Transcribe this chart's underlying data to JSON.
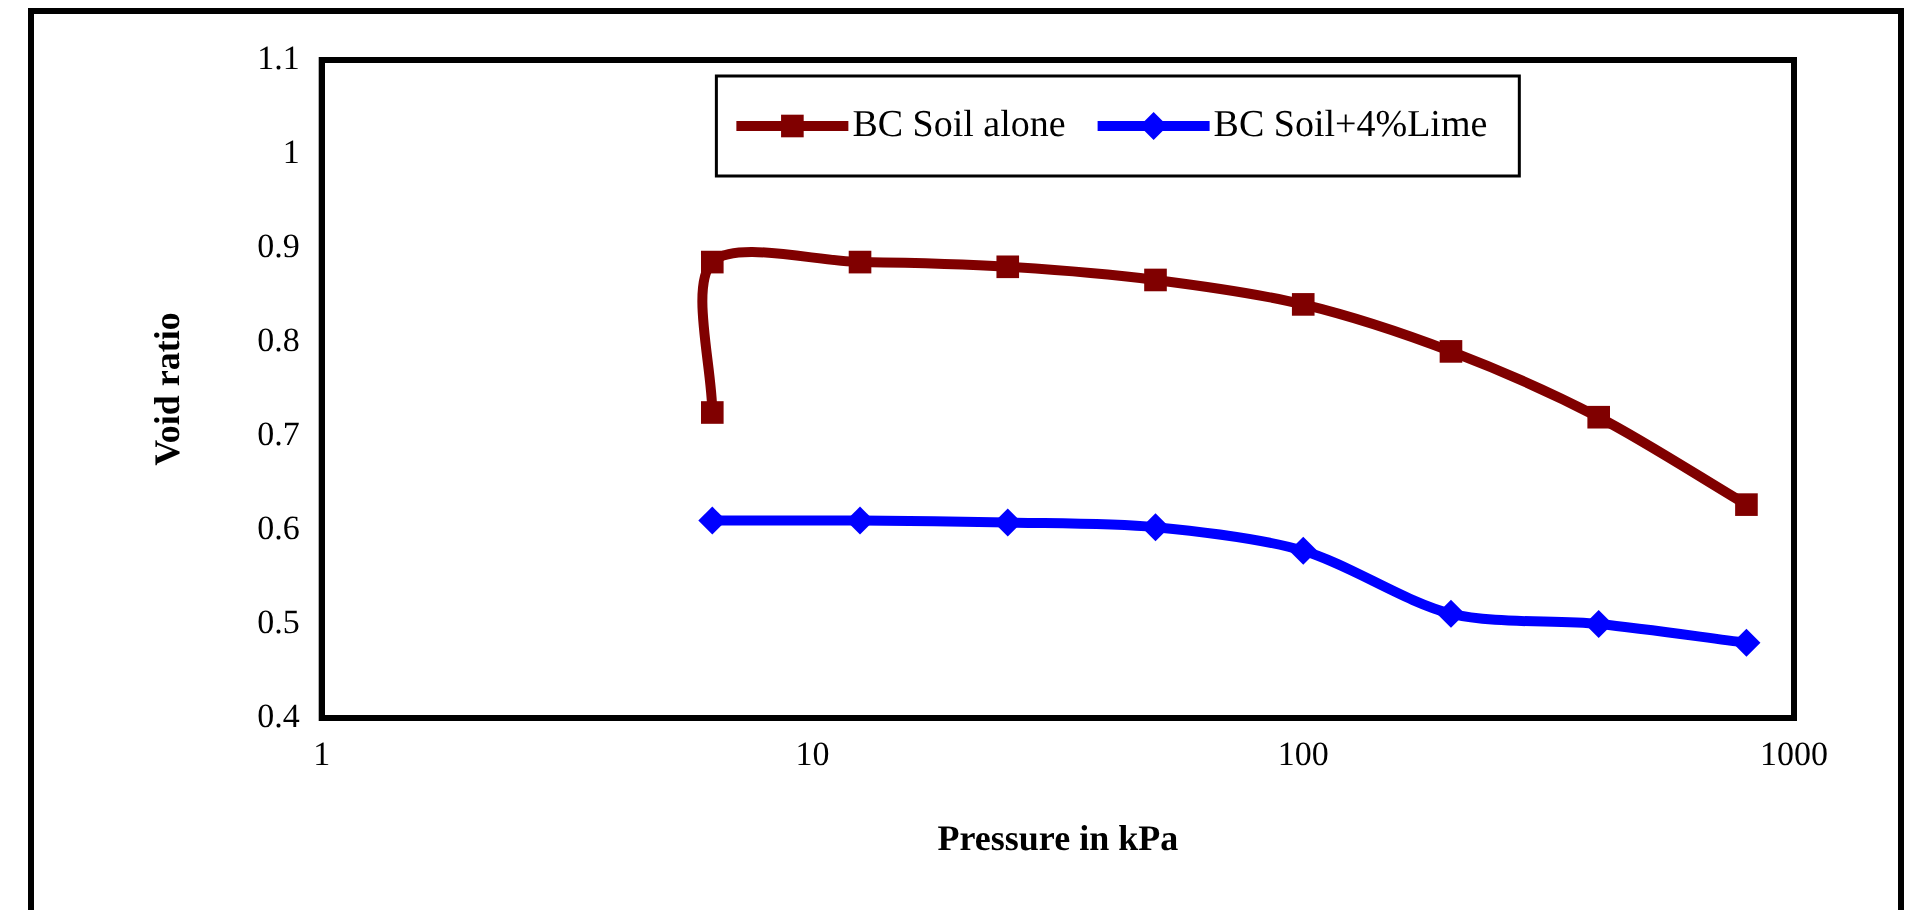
{
  "chart_data": {
    "type": "line",
    "xlabel": "Pressure in kPa",
    "ylabel": "Void ratio",
    "log": "x",
    "xlim": [
      1,
      1000
    ],
    "xticks": [
      1,
      10,
      100,
      1000
    ],
    "ylim": [
      0.4,
      1.1
    ],
    "yticks": [
      0.4,
      0.5,
      0.6,
      0.7,
      0.8,
      0.9,
      1,
      1.1
    ],
    "grid": false,
    "legend": "top",
    "line_style": "solid",
    "series": [
      {
        "name": "BC Soil alone",
        "color": "#800000",
        "marker": "square",
        "x": [
          6.25,
          6.25,
          12.5,
          25,
          50,
          100,
          200,
          400,
          800
        ],
        "values": [
          0.725,
          0.885,
          0.885,
          0.88,
          0.866,
          0.84,
          0.79,
          0.72,
          0.627
        ]
      },
      {
        "name": "BC Soil+4%Lime",
        "color": "#0000ff",
        "marker": "diamond",
        "x": [
          6.25,
          12.5,
          25,
          50,
          100,
          200,
          400,
          800
        ],
        "values": [
          0.61,
          0.61,
          0.608,
          0.603,
          0.578,
          0.511,
          0.5,
          0.48
        ]
      }
    ]
  }
}
